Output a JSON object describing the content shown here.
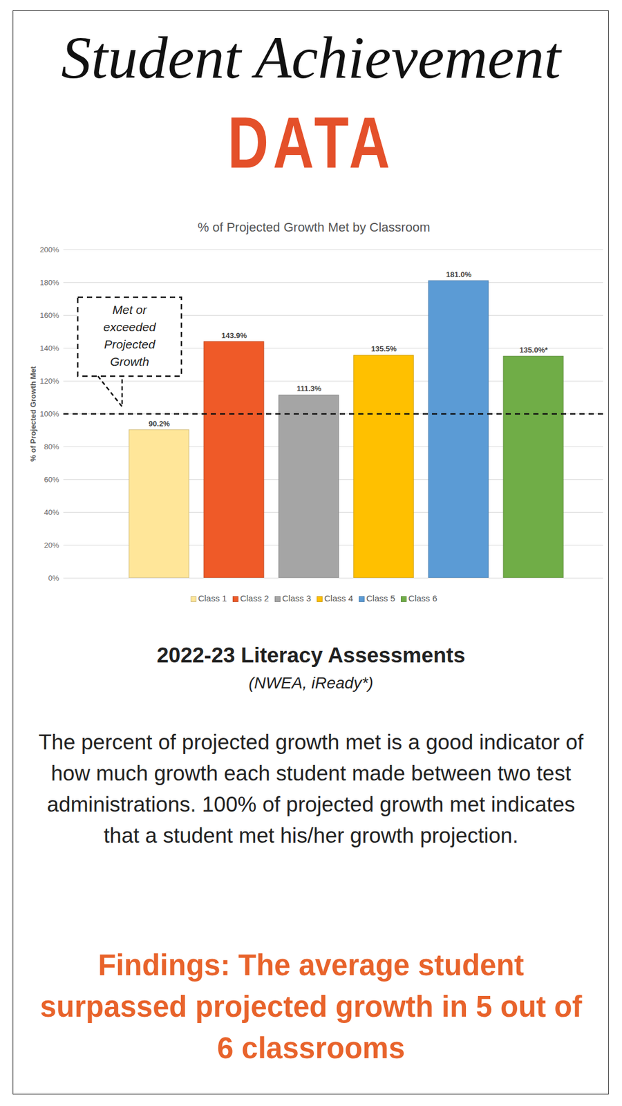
{
  "header": {
    "title": "Student Achievement",
    "subtitle": "DATA"
  },
  "chart_data": {
    "type": "bar",
    "title": "% of Projected Growth Met by Classroom",
    "y_label": "% of Projected Growth Met",
    "categories": [
      "Class 1",
      "Class 2",
      "Class 3",
      "Class 4",
      "Class 5",
      "Class 6"
    ],
    "values": [
      90.2,
      143.9,
      111.3,
      135.5,
      181.0,
      135.0
    ],
    "value_labels": [
      "90.2%",
      "143.9%",
      "111.3%",
      "135.5%",
      "181.0%",
      "135.0%*"
    ],
    "colors": [
      "#FFE699",
      "#EF5A28",
      "#A5A5A5",
      "#FFC000",
      "#5B9BD5",
      "#70AD47"
    ],
    "ylim": [
      0,
      200
    ],
    "yticks": [
      {
        "value": 0,
        "label": "0%"
      },
      {
        "value": 20,
        "label": "20%"
      },
      {
        "value": 40,
        "label": "40%"
      },
      {
        "value": 60,
        "label": "60%"
      },
      {
        "value": 80,
        "label": "80%"
      },
      {
        "value": 100,
        "label": "100%"
      },
      {
        "value": 120,
        "label": "120%"
      },
      {
        "value": 140,
        "label": "140%"
      },
      {
        "value": 160,
        "label": "160%"
      },
      {
        "value": 180,
        "label": "180%"
      },
      {
        "value": 200,
        "label": "200%"
      }
    ],
    "grid": true,
    "data_labels": true,
    "legend": "bottom",
    "tick_labels": "y",
    "annotations": [
      {
        "text": "Met or exceeded Projected Growth",
        "y": 100
      }
    ]
  },
  "footer": {
    "heading": "2022-23 Literacy Assessments",
    "source": "(NWEA, iReady*)",
    "description": "The percent of projected growth met is a good indicator of how much growth each student made between two test administrations. 100% of projected growth met indicates that a student met his/her growth projection.",
    "findings": "Findings: The average student surpassed projected growth in 5 out of 6 classrooms"
  }
}
